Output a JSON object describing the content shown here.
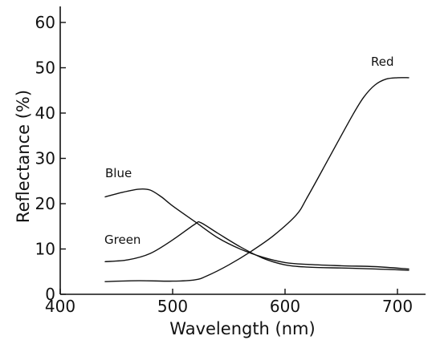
{
  "chart_data": {
    "type": "line",
    "title": "",
    "xlabel": "Wavelength (nm)",
    "ylabel": "Reflectance (%)",
    "xlim": [
      400,
      720
    ],
    "ylim": [
      0,
      65
    ],
    "xticks": [
      400,
      500,
      600,
      700
    ],
    "yticks": [
      0,
      10,
      20,
      30,
      40,
      50,
      60
    ],
    "grid": false,
    "legend": "none",
    "colors": {
      "line": "#111111",
      "axis": "#111111",
      "background": "#ffffff"
    },
    "series": [
      {
        "name": "Blue",
        "x": [
          440,
          455,
          470,
          480,
          490,
          500,
          520,
          540,
          560,
          580,
          600,
          620,
          650,
          680,
          710
        ],
        "y": [
          21.5,
          22.5,
          23.2,
          23.0,
          21.5,
          19.5,
          16.0,
          12.5,
          10.0,
          8.2,
          7.0,
          6.6,
          6.3,
          6.1,
          5.6
        ]
      },
      {
        "name": "Green",
        "x": [
          440,
          460,
          480,
          500,
          520,
          525,
          540,
          560,
          580,
          600,
          620,
          650,
          680,
          710
        ],
        "y": [
          7.2,
          7.6,
          9.0,
          12.0,
          15.5,
          15.8,
          13.5,
          10.5,
          8.0,
          6.5,
          6.0,
          5.8,
          5.6,
          5.3
        ]
      },
      {
        "name": "Red",
        "x": [
          440,
          470,
          500,
          520,
          530,
          550,
          570,
          590,
          610,
          620,
          640,
          660,
          670,
          680,
          690,
          700,
          710
        ],
        "y": [
          2.8,
          3.0,
          2.9,
          3.2,
          4.0,
          6.5,
          9.5,
          13.0,
          17.5,
          21.5,
          30.5,
          39.5,
          43.5,
          46.2,
          47.5,
          47.8,
          47.8
        ]
      }
    ]
  }
}
